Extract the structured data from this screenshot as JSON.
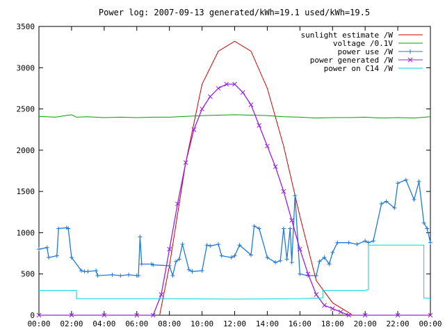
{
  "chart_data": {
    "type": "line",
    "title": "Power log: 2007-09-13 generated/kWh=19.1 used/kWh=19.5",
    "xlabel": "",
    "ylabel": "",
    "xlim": [
      0,
      24
    ],
    "ylim": [
      0,
      3500
    ],
    "x_ticks": [
      "00:00",
      "02:00",
      "04:00",
      "06:00",
      "08:00",
      "10:00",
      "12:00",
      "14:00",
      "16:00",
      "18:00",
      "20:00",
      "22:00",
      "00:00"
    ],
    "y_ticks": [
      0,
      500,
      1000,
      1500,
      2000,
      2500,
      3000,
      3500
    ],
    "grid": false,
    "legend_position": "top-right",
    "series": [
      {
        "name": "sunlight estimate /W",
        "color": "#cc0000",
        "style": "line",
        "x": [
          7.4,
          8,
          9,
          10,
          11,
          12,
          13,
          14,
          15,
          16,
          17,
          18,
          19,
          19.2
        ],
        "y": [
          0,
          600,
          1850,
          2800,
          3200,
          3320,
          3200,
          2750,
          2050,
          1200,
          420,
          150,
          30,
          0
        ]
      },
      {
        "name": "voltage /0.1V",
        "color": "#00a000",
        "style": "line",
        "x": [
          0,
          1,
          2,
          2.3,
          3,
          4,
          5,
          6,
          7,
          8,
          9,
          10,
          11,
          12,
          13,
          14,
          15,
          16,
          17,
          18,
          19,
          20,
          21,
          22,
          23,
          24
        ],
        "y": [
          2410,
          2400,
          2430,
          2400,
          2405,
          2395,
          2400,
          2395,
          2400,
          2400,
          2410,
          2420,
          2425,
          2430,
          2425,
          2420,
          2405,
          2400,
          2390,
          2395,
          2395,
          2400,
          2390,
          2395,
          2390,
          2405
        ]
      },
      {
        "name": "power use /W",
        "color": "#1e78dc",
        "style": "linespoints",
        "marker": "plus",
        "x": [
          0,
          0.5,
          0.6,
          1.1,
          1.2,
          1.7,
          1.8,
          2.0,
          2.6,
          2.8,
          3.0,
          3.5,
          3.6,
          4.5,
          5.0,
          5.5,
          6.0,
          6.1,
          6.2,
          6.3,
          6.9,
          7.0,
          8.0,
          8.2,
          8.4,
          8.6,
          8.8,
          9.2,
          9.4,
          10.0,
          10.3,
          10.5,
          11.0,
          11.2,
          11.8,
          12.0,
          12.3,
          13.0,
          13.2,
          13.5,
          14.0,
          14.5,
          14.8,
          15.0,
          15.2,
          15.4,
          15.5,
          15.7,
          16.0,
          16.5,
          17.0,
          17.2,
          17.5,
          17.8,
          18.0,
          18.3,
          19.0,
          19.5,
          20.0,
          20.2,
          20.5,
          21.0,
          21.3,
          21.8,
          22.0,
          22.5,
          23.0,
          23.3,
          23.6,
          23.8,
          24.0
        ],
        "y": [
          800,
          820,
          700,
          720,
          1050,
          1060,
          1050,
          700,
          540,
          530,
          530,
          540,
          480,
          490,
          480,
          490,
          480,
          480,
          950,
          620,
          620,
          610,
          600,
          480,
          650,
          680,
          860,
          550,
          530,
          540,
          850,
          840,
          860,
          720,
          700,
          720,
          850,
          730,
          1080,
          1050,
          700,
          640,
          660,
          1050,
          680,
          1050,
          640,
          1450,
          500,
          480,
          480,
          650,
          700,
          620,
          760,
          880,
          880,
          860,
          900,
          880,
          900,
          1350,
          1380,
          1300,
          1600,
          1640,
          1400,
          1620,
          1120,
          1050,
          880
        ]
      },
      {
        "name": "power generated /W",
        "color": "#9a1ee6",
        "style": "linespoints",
        "marker": "cross",
        "x": [
          0,
          2,
          4,
          6,
          7.0,
          7.5,
          8,
          8.5,
          9,
          9.5,
          10,
          10.5,
          11,
          11.5,
          12,
          12.5,
          13,
          13.5,
          14,
          14.5,
          15,
          15.5,
          16,
          16.5,
          17,
          17.5,
          18,
          18.5,
          19,
          20,
          22,
          24
        ],
        "y": [
          0,
          0,
          0,
          0,
          0,
          250,
          800,
          1350,
          1850,
          2250,
          2500,
          2650,
          2750,
          2800,
          2800,
          2700,
          2550,
          2300,
          2050,
          1800,
          1500,
          1150,
          800,
          500,
          250,
          120,
          80,
          40,
          0,
          0,
          0,
          0
        ]
      },
      {
        "name": "power on C14 /W",
        "color": "#00d6d6",
        "style": "line",
        "x": [
          0,
          2.3,
          2.3,
          8,
          12,
          16,
          17.4,
          17.4,
          20,
          20.2,
          20.2,
          23.6,
          23.6,
          24
        ],
        "y": [
          300,
          300,
          200,
          200,
          195,
          200,
          210,
          300,
          300,
          310,
          850,
          850,
          210,
          205
        ]
      }
    ]
  }
}
